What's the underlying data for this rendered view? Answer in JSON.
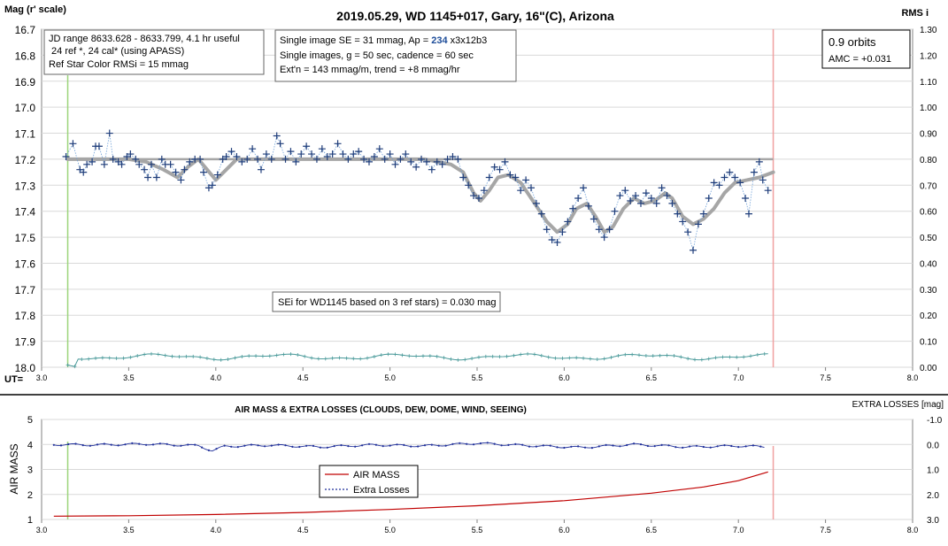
{
  "chart_data": [
    {
      "type": "scatter",
      "title": "2019.05.29, WD 1145+017, Gary, 16\"(C), Arizona",
      "ylabel": "Mag (r' scale)",
      "y2label": "RMS i",
      "xlabel": "UT=",
      "xlim": [
        3.0,
        8.0
      ],
      "ylim": [
        18.0,
        16.7
      ],
      "y2lim": [
        0.0,
        1.3
      ],
      "x_ticks": [
        "3.0",
        "3.5",
        "4.0",
        "4.5",
        "5.0",
        "5.5",
        "6.0",
        "6.5",
        "7.0",
        "7.5",
        "8.0"
      ],
      "y_ticks": [
        "16.7",
        "16.8",
        "16.9",
        "17.0",
        "17.1",
        "17.2",
        "17.3",
        "17.4",
        "17.5",
        "17.6",
        "17.7",
        "17.8",
        "17.9",
        "18.0"
      ],
      "y2_ticks": [
        "1.30",
        "1.20",
        "1.10",
        "1.00",
        "0.90",
        "0.80",
        "0.70",
        "0.60",
        "0.50",
        "0.40",
        "0.30",
        "0.20",
        "0.10",
        "0.00"
      ],
      "grid": true,
      "reference_level": 17.2,
      "start_line_x": 3.15,
      "end_line_x": 7.2,
      "annotations": {
        "box1": [
          "JD range 8633.628 - 8633.799, 4.1 hr useful",
          " 24 ref *, 24 cal* (using APASS)",
          "Ref Star Color RMSi = 15 mmag"
        ],
        "box2_line1_pre": "Single image SE = 31 mmag, Ap = ",
        "box2_line1_ap": "234",
        "box2_line1_post": " x3x12b3",
        "box2_line2": "Single images, g = 50 sec, cadence = 60 sec",
        "box2_line3": "Ext'n = 143 mmag/m, trend = +8 mmag/hr",
        "box3_line1": "0.9 orbits",
        "box3_line2": "AMC = +0.031",
        "sei": "SEi for WD1145 based on 3 ref stars) = 0.030 mag"
      },
      "series": [
        {
          "kind": "model",
          "color": "#a6a6a6",
          "points": [
            [
              3.15,
              17.2
            ],
            [
              3.5,
              17.2
            ],
            [
              3.6,
              17.21
            ],
            [
              3.7,
              17.24
            ],
            [
              3.78,
              17.27
            ],
            [
              3.84,
              17.23
            ],
            [
              3.9,
              17.2
            ],
            [
              3.95,
              17.24
            ],
            [
              4.0,
              17.28
            ],
            [
              4.06,
              17.24
            ],
            [
              4.12,
              17.2
            ],
            [
              4.3,
              17.2
            ],
            [
              5.2,
              17.2
            ],
            [
              5.35,
              17.22
            ],
            [
              5.42,
              17.25
            ],
            [
              5.48,
              17.33
            ],
            [
              5.52,
              17.36
            ],
            [
              5.57,
              17.32
            ],
            [
              5.62,
              17.27
            ],
            [
              5.68,
              17.26
            ],
            [
              5.75,
              17.29
            ],
            [
              5.82,
              17.36
            ],
            [
              5.9,
              17.44
            ],
            [
              5.96,
              17.48
            ],
            [
              6.02,
              17.45
            ],
            [
              6.07,
              17.39
            ],
            [
              6.13,
              17.37
            ],
            [
              6.18,
              17.42
            ],
            [
              6.23,
              17.48
            ],
            [
              6.28,
              17.46
            ],
            [
              6.34,
              17.39
            ],
            [
              6.4,
              17.35
            ],
            [
              6.46,
              17.37
            ],
            [
              6.52,
              17.36
            ],
            [
              6.58,
              17.33
            ],
            [
              6.62,
              17.35
            ],
            [
              6.68,
              17.42
            ],
            [
              6.74,
              17.45
            ],
            [
              6.8,
              17.43
            ],
            [
              6.86,
              17.39
            ],
            [
              6.92,
              17.33
            ],
            [
              6.98,
              17.29
            ],
            [
              7.05,
              17.28
            ],
            [
              7.12,
              17.27
            ],
            [
              7.2,
              17.25
            ]
          ]
        },
        {
          "kind": "observed",
          "color": "#1f3d7a",
          "points": [
            [
              3.14,
              17.19
            ],
            [
              3.18,
              17.14
            ],
            [
              3.22,
              17.24
            ],
            [
              3.24,
              17.25
            ],
            [
              3.26,
              17.22
            ],
            [
              3.29,
              17.21
            ],
            [
              3.31,
              17.15
            ],
            [
              3.33,
              17.15
            ],
            [
              3.36,
              17.22
            ],
            [
              3.39,
              17.1
            ],
            [
              3.41,
              17.2
            ],
            [
              3.44,
              17.21
            ],
            [
              3.46,
              17.22
            ],
            [
              3.49,
              17.19
            ],
            [
              3.51,
              17.18
            ],
            [
              3.54,
              17.2
            ],
            [
              3.56,
              17.22
            ],
            [
              3.59,
              17.24
            ],
            [
              3.61,
              17.27
            ],
            [
              3.63,
              17.22
            ],
            [
              3.66,
              17.27
            ],
            [
              3.69,
              17.2
            ],
            [
              3.71,
              17.22
            ],
            [
              3.74,
              17.22
            ],
            [
              3.77,
              17.25
            ],
            [
              3.8,
              17.28
            ],
            [
              3.82,
              17.24
            ],
            [
              3.85,
              17.21
            ],
            [
              3.88,
              17.2
            ],
            [
              3.91,
              17.2
            ],
            [
              3.93,
              17.25
            ],
            [
              3.96,
              17.31
            ],
            [
              3.98,
              17.3
            ],
            [
              4.01,
              17.26
            ],
            [
              4.04,
              17.2
            ],
            [
              4.06,
              17.19
            ],
            [
              4.09,
              17.17
            ],
            [
              4.12,
              17.19
            ],
            [
              4.15,
              17.21
            ],
            [
              4.18,
              17.2
            ],
            [
              4.21,
              17.16
            ],
            [
              4.24,
              17.2
            ],
            [
              4.26,
              17.24
            ],
            [
              4.29,
              17.18
            ],
            [
              4.32,
              17.2
            ],
            [
              4.35,
              17.11
            ],
            [
              4.37,
              17.14
            ],
            [
              4.4,
              17.2
            ],
            [
              4.43,
              17.17
            ],
            [
              4.46,
              17.21
            ],
            [
              4.49,
              17.18
            ],
            [
              4.52,
              17.15
            ],
            [
              4.55,
              17.18
            ],
            [
              4.58,
              17.2
            ],
            [
              4.61,
              17.16
            ],
            [
              4.64,
              17.19
            ],
            [
              4.67,
              17.18
            ],
            [
              4.7,
              17.14
            ],
            [
              4.73,
              17.18
            ],
            [
              4.76,
              17.2
            ],
            [
              4.79,
              17.18
            ],
            [
              4.82,
              17.17
            ],
            [
              4.85,
              17.2
            ],
            [
              4.88,
              17.21
            ],
            [
              4.91,
              17.19
            ],
            [
              4.94,
              17.16
            ],
            [
              4.97,
              17.2
            ],
            [
              5.0,
              17.18
            ],
            [
              5.03,
              17.22
            ],
            [
              5.06,
              17.2
            ],
            [
              5.09,
              17.18
            ],
            [
              5.12,
              17.21
            ],
            [
              5.15,
              17.23
            ],
            [
              5.18,
              17.2
            ],
            [
              5.21,
              17.21
            ],
            [
              5.24,
              17.24
            ],
            [
              5.27,
              17.21
            ],
            [
              5.3,
              17.22
            ],
            [
              5.33,
              17.2
            ],
            [
              5.36,
              17.19
            ],
            [
              5.39,
              17.2
            ],
            [
              5.42,
              17.27
            ],
            [
              5.45,
              17.3
            ],
            [
              5.48,
              17.34
            ],
            [
              5.51,
              17.35
            ],
            [
              5.54,
              17.32
            ],
            [
              5.57,
              17.27
            ],
            [
              5.6,
              17.23
            ],
            [
              5.63,
              17.24
            ],
            [
              5.66,
              17.21
            ],
            [
              5.69,
              17.26
            ],
            [
              5.72,
              17.27
            ],
            [
              5.75,
              17.32
            ],
            [
              5.78,
              17.28
            ],
            [
              5.81,
              17.31
            ],
            [
              5.84,
              17.37
            ],
            [
              5.87,
              17.41
            ],
            [
              5.9,
              17.47
            ],
            [
              5.93,
              17.51
            ],
            [
              5.96,
              17.52
            ],
            [
              5.99,
              17.48
            ],
            [
              6.02,
              17.44
            ],
            [
              6.05,
              17.39
            ],
            [
              6.08,
              17.35
            ],
            [
              6.11,
              17.31
            ],
            [
              6.14,
              17.38
            ],
            [
              6.17,
              17.43
            ],
            [
              6.2,
              17.47
            ],
            [
              6.23,
              17.5
            ],
            [
              6.26,
              17.47
            ],
            [
              6.29,
              17.4
            ],
            [
              6.32,
              17.34
            ],
            [
              6.35,
              17.32
            ],
            [
              6.38,
              17.36
            ],
            [
              6.41,
              17.34
            ],
            [
              6.44,
              17.37
            ],
            [
              6.47,
              17.33
            ],
            [
              6.5,
              17.35
            ],
            [
              6.53,
              17.37
            ],
            [
              6.56,
              17.31
            ],
            [
              6.59,
              17.34
            ],
            [
              6.62,
              17.37
            ],
            [
              6.65,
              17.41
            ],
            [
              6.68,
              17.44
            ],
            [
              6.71,
              17.48
            ],
            [
              6.74,
              17.55
            ],
            [
              6.77,
              17.45
            ],
            [
              6.8,
              17.41
            ],
            [
              6.83,
              17.35
            ],
            [
              6.86,
              17.29
            ],
            [
              6.89,
              17.3
            ],
            [
              6.92,
              17.27
            ],
            [
              6.95,
              17.25
            ],
            [
              6.98,
              17.27
            ],
            [
              7.01,
              17.29
            ],
            [
              7.04,
              17.35
            ],
            [
              7.06,
              17.41
            ],
            [
              7.09,
              17.25
            ],
            [
              7.12,
              17.21
            ],
            [
              7.14,
              17.28
            ],
            [
              7.17,
              17.32
            ]
          ]
        },
        {
          "kind": "rms",
          "color": "#4a9a9a",
          "from": 3.15,
          "to": 7.17,
          "level": 0.04
        }
      ]
    },
    {
      "type": "line",
      "title": "AIR MASS & EXTRA LOSSES (CLOUDS, DEW, DOME, WIND, SEEING)",
      "ylabel": "AIR MASS",
      "y2label": "EXTRA LOSSES [mag]",
      "xlim": [
        3.0,
        8.0
      ],
      "ylim": [
        1,
        5
      ],
      "y2lim": [
        3.0,
        -1.0
      ],
      "x_ticks": [
        "3.0",
        "3.5",
        "4.0",
        "4.5",
        "5.0",
        "5.5",
        "6.0",
        "6.5",
        "7.0",
        "7.5",
        "8.0"
      ],
      "y_ticks": [
        "5",
        "4",
        "3",
        "2",
        "1"
      ],
      "y2_ticks": [
        "-1.0",
        "0.0",
        "1.0",
        "2.0",
        "3.0"
      ],
      "grid": true,
      "start_line_x": 3.15,
      "end_line_x": 7.2,
      "legend": {
        "placement": "center-left",
        "entries": [
          "AIR MASS",
          "Extra Losses"
        ]
      },
      "series": [
        {
          "name": "AIR MASS",
          "color": "#c00000",
          "points": [
            [
              3.07,
              1.13
            ],
            [
              3.5,
              1.15
            ],
            [
              4.0,
              1.2
            ],
            [
              4.5,
              1.28
            ],
            [
              5.0,
              1.4
            ],
            [
              5.5,
              1.55
            ],
            [
              6.0,
              1.75
            ],
            [
              6.5,
              2.05
            ],
            [
              6.8,
              2.3
            ],
            [
              7.0,
              2.55
            ],
            [
              7.17,
              2.9
            ]
          ]
        },
        {
          "name": "Extra Losses",
          "color": "#1f2f9a",
          "points": [
            [
              3.07,
              0.0
            ],
            [
              3.3,
              0.02
            ],
            [
              3.6,
              -0.02
            ],
            [
              3.9,
              0.05
            ],
            [
              3.98,
              0.25
            ],
            [
              4.05,
              0.08
            ],
            [
              4.3,
              0.03
            ],
            [
              4.6,
              0.1
            ],
            [
              4.9,
              0.02
            ],
            [
              5.2,
              0.06
            ],
            [
              5.5,
              -0.05
            ],
            [
              5.8,
              0.05
            ],
            [
              6.1,
              0.12
            ],
            [
              6.4,
              0.0
            ],
            [
              6.7,
              0.1
            ],
            [
              7.0,
              0.06
            ],
            [
              7.17,
              0.1
            ]
          ]
        }
      ]
    }
  ]
}
